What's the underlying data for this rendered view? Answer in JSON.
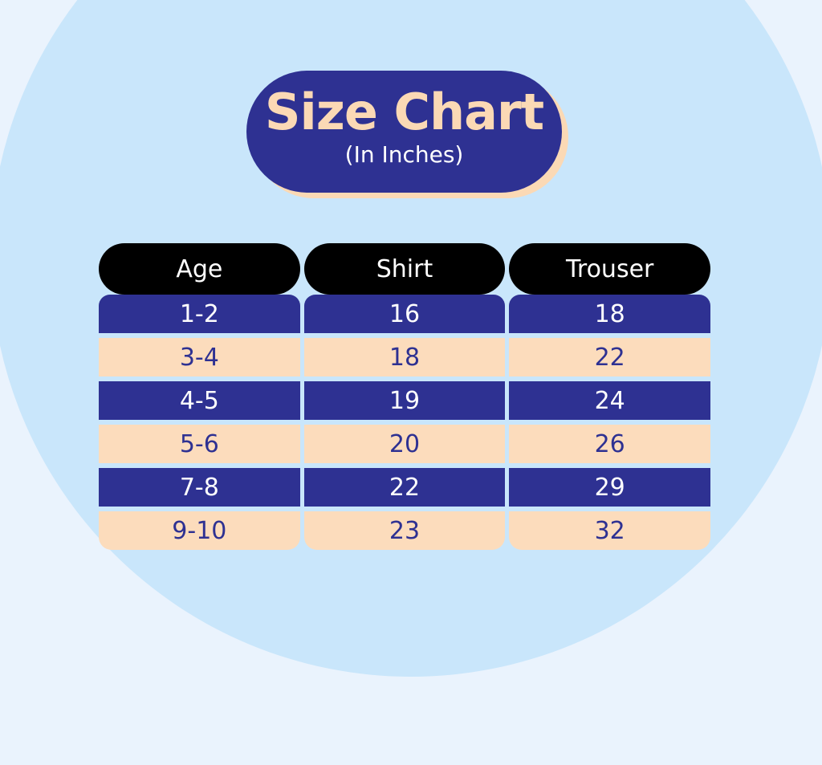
{
  "header": {
    "title": "Size Chart",
    "subtitle": "(In Inches)"
  },
  "colors": {
    "navy": "#2e3192",
    "peach": "#fcdcbc",
    "header_bg": "#000000",
    "background": "#c9e6fb"
  },
  "table": {
    "columns": [
      "Age",
      "Shirt",
      "Trouser"
    ],
    "rows": [
      [
        "1-2",
        "16",
        "18"
      ],
      [
        "3-4",
        "18",
        "22"
      ],
      [
        "4-5",
        "19",
        "24"
      ],
      [
        "5-6",
        "20",
        "26"
      ],
      [
        "7-8",
        "22",
        "29"
      ],
      [
        "9-10",
        "23",
        "32"
      ]
    ]
  }
}
